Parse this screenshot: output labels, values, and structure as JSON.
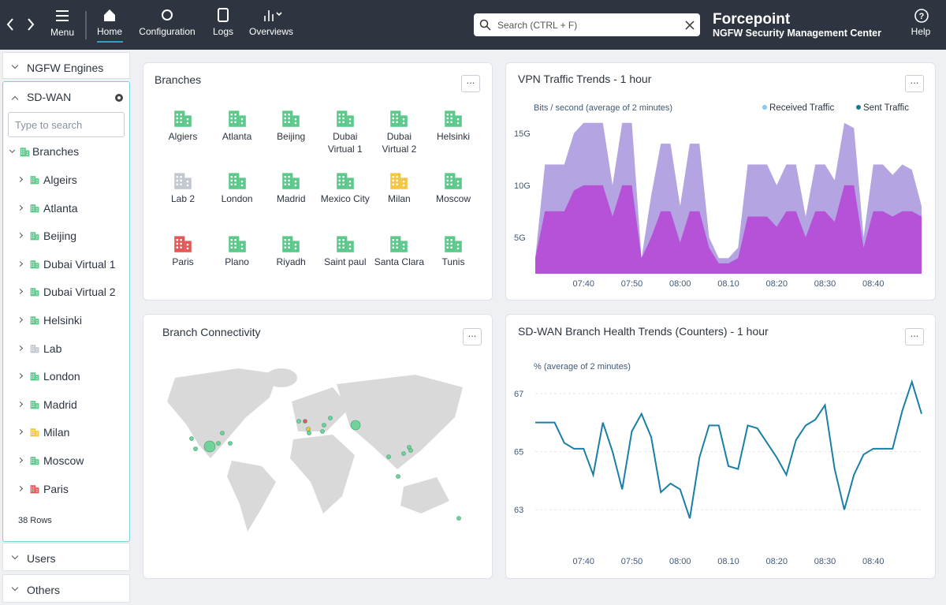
{
  "nav": {
    "items": [
      "Menu",
      "Home",
      "Configuration",
      "Logs",
      "Overviews"
    ],
    "search_placeholder": "Search (CTRL + F)",
    "brand": "Forcepoint",
    "product": "NGFW Security Management Center",
    "help": "Help"
  },
  "sidebar": {
    "sections": [
      "NGFW Engines",
      "SD-WAN",
      "Users",
      "Others"
    ],
    "search_placeholder": "Type to search",
    "root": "Branches",
    "root_color": "#5cc98b",
    "items": [
      {
        "label": "Algeirs",
        "color": "#5cc98b"
      },
      {
        "label": "Atlanta",
        "color": "#5cc98b"
      },
      {
        "label": "Beijing",
        "color": "#5cc98b"
      },
      {
        "label": "Dubai Virtual 1",
        "color": "#5cc98b"
      },
      {
        "label": "Dubai Virtual 2",
        "color": "#5cc98b"
      },
      {
        "label": "Helsinki",
        "color": "#5cc98b"
      },
      {
        "label": "Lab",
        "color": "#c3c7d0"
      },
      {
        "label": "London",
        "color": "#5cc98b"
      },
      {
        "label": "Madrid",
        "color": "#5cc98b"
      },
      {
        "label": "Milan",
        "color": "#f5c542"
      },
      {
        "label": "Moscow",
        "color": "#5cc98b"
      },
      {
        "label": "Paris",
        "color": "#e45858"
      }
    ],
    "rows": "38 Rows"
  },
  "branches": {
    "title": "Branches",
    "items": [
      {
        "label": "Algiers",
        "color": "#5cc98b"
      },
      {
        "label": "Atlanta",
        "color": "#5cc98b"
      },
      {
        "label": "Beijing",
        "color": "#5cc98b"
      },
      {
        "label": "Dubai Virtual 1",
        "color": "#5cc98b"
      },
      {
        "label": "Dubai Virtual 2",
        "color": "#5cc98b"
      },
      {
        "label": "Helsinki",
        "color": "#5cc98b"
      },
      {
        "label": "Lab 2",
        "color": "#c3c7d0"
      },
      {
        "label": "London",
        "color": "#5cc98b"
      },
      {
        "label": "Madrid",
        "color": "#5cc98b"
      },
      {
        "label": "Mexico City",
        "color": "#5cc98b"
      },
      {
        "label": "Milan",
        "color": "#f5c542"
      },
      {
        "label": "Moscow",
        "color": "#5cc98b"
      },
      {
        "label": "Paris",
        "color": "#e45858"
      },
      {
        "label": "Plano",
        "color": "#5cc98b"
      },
      {
        "label": "Riyadh",
        "color": "#5cc98b"
      },
      {
        "label": "Saint paul",
        "color": "#5cc98b"
      },
      {
        "label": "Santa Clara",
        "color": "#5cc98b"
      },
      {
        "label": "Tunis",
        "color": "#5cc98b"
      }
    ]
  },
  "map": {
    "title": "Branch Connectivity"
  },
  "chart_data": [
    {
      "type": "area",
      "title": "VPN Traffic Trends - 1 hour",
      "y_label": "Bits / second (average of 2 minutes)",
      "categories": [
        null,
        null,
        null,
        null,
        null,
        "07:40",
        null,
        null,
        null,
        null,
        "07:50",
        null,
        null,
        null,
        null,
        "08:00",
        null,
        null,
        null,
        null,
        "08.10",
        null,
        null,
        null,
        null,
        "08:20",
        null,
        null,
        null,
        null,
        "08:30",
        null,
        null,
        null,
        null,
        "08:40",
        null,
        null,
        null,
        null,
        null
      ],
      "series": [
        {
          "name": "Received Traffic",
          "color": "#b4a5e2",
          "legend_color": "#8cc6ea",
          "values": [
            3,
            12,
            12,
            12,
            15,
            16,
            16,
            16,
            10,
            16,
            16,
            3,
            9,
            14,
            14,
            8,
            14,
            14,
            5,
            3,
            3,
            4,
            12,
            12,
            12,
            10,
            12,
            12,
            7,
            12,
            12,
            10.5,
            16,
            15.5,
            5,
            12,
            12,
            11,
            12,
            11.5,
            8
          ]
        },
        {
          "name": "Sent Traffic",
          "color": "#b552d8",
          "legend_color": "#0f7f8e",
          "values": [
            3,
            7.5,
            7.5,
            7.5,
            9.5,
            10,
            10,
            10,
            7,
            10,
            10,
            3,
            5,
            7.5,
            7.5,
            4.5,
            7.5,
            7.5,
            4,
            2.5,
            2.5,
            3,
            7,
            7,
            7,
            6,
            7.5,
            7.5,
            5,
            7.5,
            7.5,
            6.5,
            10,
            10,
            4,
            7.5,
            7.5,
            7,
            7.5,
            7.5,
            7
          ]
        }
      ],
      "ylim": [
        1.5,
        17.5
      ],
      "yticks": [
        {
          "value": 5,
          "label": "5G"
        },
        {
          "value": 10,
          "label": "10G"
        },
        {
          "value": 15,
          "label": "15G"
        }
      ],
      "legend": "top-right"
    },
    {
      "type": "line",
      "title": "SD-WAN Branch Health Trends (Counters) - 1 hour",
      "y_label": "% (average of 2 minutes)",
      "categories": [
        null,
        null,
        null,
        null,
        null,
        "07:40",
        null,
        null,
        null,
        null,
        "07:50",
        null,
        null,
        null,
        null,
        "08:00",
        null,
        null,
        null,
        null,
        "08.10",
        null,
        null,
        null,
        null,
        "08:20",
        null,
        null,
        null,
        null,
        "08:30",
        null,
        null,
        null,
        null,
        "08:40",
        null,
        null,
        null,
        null,
        null
      ],
      "color": "#1a7fa6",
      "values": [
        66,
        66,
        66,
        65.3,
        65.1,
        65.1,
        64.2,
        66,
        65,
        63.7,
        65.7,
        66.3,
        65.5,
        63.6,
        63.9,
        63.7,
        62.7,
        64.8,
        65.9,
        65.9,
        64.5,
        64.4,
        65.9,
        65.8,
        65.3,
        64.8,
        64.2,
        65.4,
        65.9,
        66.1,
        66.6,
        64.4,
        63,
        64.2,
        64.9,
        65.1,
        65.1,
        65.1,
        66.4,
        67.4,
        66.3
      ],
      "ylim": [
        62,
        68
      ],
      "yticks": [
        63,
        65,
        67
      ],
      "grid": true
    }
  ]
}
